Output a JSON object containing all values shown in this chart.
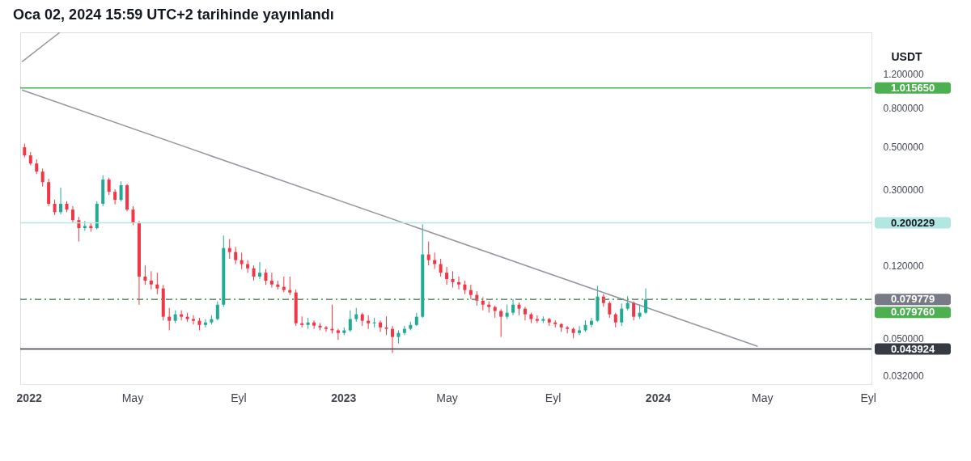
{
  "chart_data": {
    "type": "candlestick",
    "title": "Oca 02, 2024 15:59 UTC+2 tarihinde yayınlandı",
    "ylabel": "USDT",
    "log": true,
    "grid": false,
    "colors": [
      "#f23645",
      "#f23645",
      "#f23645",
      "#f23645",
      "#f23645",
      "#f23645",
      "#22ab94",
      "#f23645",
      "#f23645",
      "#f23645",
      "#22ab94",
      "#f23645",
      "#22ab94",
      "#22ab94",
      "#f23645",
      "#f23645",
      "#22ab94",
      "#f23645",
      "#f23645",
      "#f23645",
      "#f23645",
      "#f23645",
      "#f23645",
      "#f23645",
      "#f23645",
      "#22ab94",
      "#f23645",
      "#f23645",
      "#f23645",
      "#f23645",
      "#22ab94",
      "#22ab94",
      "#22ab94",
      "#22ab94",
      "#f23645",
      "#f23645",
      "#f23645",
      "#f23645",
      "#f23645",
      "#22ab94",
      "#f23645",
      "#f23645",
      "#f23645",
      "#f23645",
      "#f23645",
      "#f23645",
      "#f23645",
      "#22ab94",
      "#f23645",
      "#f23645",
      "#f23645",
      "#f23645",
      "#f23645",
      "#22ab94",
      "#22ab94",
      "#22ab94",
      "#f23645",
      "#f23645",
      "#22ab94",
      "#f23645",
      "#f23645",
      "#f23645",
      "#22ab94",
      "#22ab94",
      "#22ab94",
      "#22ab94",
      "#22ab94",
      "#f23645",
      "#f23645",
      "#f23645",
      "#f23645",
      "#f23645",
      "#f23645",
      "#f23645",
      "#f23645",
      "#f23645",
      "#f23645",
      "#f23645",
      "#f23645",
      "#f23645",
      "#22ab94",
      "#22ab94",
      "#f23645",
      "#f23645",
      "#f23645",
      "#f23645",
      "#22ab94",
      "#f23645",
      "#f23645",
      "#f23645",
      "#f23645",
      "#f23645",
      "#22ab94",
      "#22ab94",
      "#22ab94",
      "#22ab94",
      "#f23645",
      "#f23645",
      "#f23645",
      "#22ab94",
      "#22ab94",
      "#f23645",
      "#22ab94",
      "#22ab94"
    ],
    "x": [
      "2021-12-27",
      "2022-01-03",
      "2022-01-10",
      "2022-01-17",
      "2022-01-24",
      "2022-01-31",
      "2022-02-07",
      "2022-02-14",
      "2022-02-21",
      "2022-02-28",
      "2022-03-07",
      "2022-03-14",
      "2022-03-21",
      "2022-03-28",
      "2022-04-04",
      "2022-04-11",
      "2022-04-18",
      "2022-04-25",
      "2022-05-02",
      "2022-05-09",
      "2022-05-16",
      "2022-05-23",
      "2022-05-30",
      "2022-06-06",
      "2022-06-13",
      "2022-06-20",
      "2022-06-27",
      "2022-07-04",
      "2022-07-11",
      "2022-07-18",
      "2022-07-25",
      "2022-08-01",
      "2022-08-08",
      "2022-08-15",
      "2022-08-22",
      "2022-08-29",
      "2022-09-05",
      "2022-09-12",
      "2022-09-19",
      "2022-09-26",
      "2022-10-03",
      "2022-10-10",
      "2022-10-17",
      "2022-10-24",
      "2022-10-31",
      "2022-11-07",
      "2022-11-14",
      "2022-11-21",
      "2022-11-28",
      "2022-12-05",
      "2022-12-12",
      "2022-12-19",
      "2022-12-26",
      "2023-01-02",
      "2023-01-09",
      "2023-01-16",
      "2023-01-23",
      "2023-01-30",
      "2023-02-06",
      "2023-02-13",
      "2023-02-20",
      "2023-02-27",
      "2023-03-06",
      "2023-03-13",
      "2023-03-20",
      "2023-03-27",
      "2023-04-03",
      "2023-04-10",
      "2023-04-17",
      "2023-04-24",
      "2023-05-01",
      "2023-05-08",
      "2023-05-15",
      "2023-05-22",
      "2023-05-29",
      "2023-06-05",
      "2023-06-12",
      "2023-06-19",
      "2023-06-26",
      "2023-07-03",
      "2023-07-10",
      "2023-07-17",
      "2023-07-24",
      "2023-07-31",
      "2023-08-07",
      "2023-08-14",
      "2023-08-21",
      "2023-08-28",
      "2023-09-04",
      "2023-09-11",
      "2023-09-18",
      "2023-09-25",
      "2023-10-02",
      "2023-10-09",
      "2023-10-16",
      "2023-10-23",
      "2023-10-30",
      "2023-11-06",
      "2023-11-13",
      "2023-11-20",
      "2023-11-27",
      "2023-12-04",
      "2023-12-11",
      "2023-12-18"
    ],
    "ohlc": [
      [
        0.497,
        0.52,
        0.44,
        0.451
      ],
      [
        0.451,
        0.47,
        0.4,
        0.409
      ],
      [
        0.409,
        0.43,
        0.36,
        0.371
      ],
      [
        0.371,
        0.385,
        0.31,
        0.327
      ],
      [
        0.327,
        0.34,
        0.245,
        0.252
      ],
      [
        0.252,
        0.265,
        0.22,
        0.228
      ],
      [
        0.228,
        0.306,
        0.222,
        0.252
      ],
      [
        0.252,
        0.26,
        0.228,
        0.235
      ],
      [
        0.235,
        0.245,
        0.2,
        0.207
      ],
      [
        0.207,
        0.215,
        0.16,
        0.188
      ],
      [
        0.188,
        0.205,
        0.182,
        0.193
      ],
      [
        0.193,
        0.2,
        0.18,
        0.188
      ],
      [
        0.188,
        0.26,
        0.185,
        0.252
      ],
      [
        0.252,
        0.355,
        0.245,
        0.337
      ],
      [
        0.337,
        0.345,
        0.28,
        0.291
      ],
      [
        0.291,
        0.3,
        0.25,
        0.264
      ],
      [
        0.264,
        0.33,
        0.26,
        0.315
      ],
      [
        0.315,
        0.32,
        0.23,
        0.235
      ],
      [
        0.235,
        0.245,
        0.195,
        0.201
      ],
      [
        0.201,
        0.205,
        0.0749,
        0.105
      ],
      [
        0.105,
        0.12,
        0.095,
        0.1
      ],
      [
        0.1,
        0.112,
        0.09,
        0.0955
      ],
      [
        0.0955,
        0.11,
        0.085,
        0.091
      ],
      [
        0.091,
        0.095,
        0.062,
        0.0648
      ],
      [
        0.0648,
        0.072,
        0.055,
        0.0617
      ],
      [
        0.0617,
        0.07,
        0.06,
        0.0667
      ],
      [
        0.0667,
        0.07,
        0.062,
        0.0648
      ],
      [
        0.0648,
        0.068,
        0.061,
        0.063
      ],
      [
        0.063,
        0.066,
        0.059,
        0.0617
      ],
      [
        0.0617,
        0.064,
        0.055,
        0.0587
      ],
      [
        0.0587,
        0.063,
        0.057,
        0.0605
      ],
      [
        0.0605,
        0.066,
        0.059,
        0.063
      ],
      [
        0.063,
        0.078,
        0.062,
        0.0749
      ],
      [
        0.0749,
        0.172,
        0.073,
        0.148
      ],
      [
        0.148,
        0.165,
        0.13,
        0.141
      ],
      [
        0.141,
        0.15,
        0.122,
        0.128
      ],
      [
        0.128,
        0.14,
        0.115,
        0.122
      ],
      [
        0.122,
        0.128,
        0.11,
        0.116
      ],
      [
        0.116,
        0.12,
        0.1,
        0.105
      ],
      [
        0.105,
        0.125,
        0.102,
        0.11
      ],
      [
        0.11,
        0.115,
        0.095,
        0.1
      ],
      [
        0.1,
        0.11,
        0.092,
        0.0955
      ],
      [
        0.0955,
        0.1,
        0.09,
        0.0928
      ],
      [
        0.0928,
        0.105,
        0.087,
        0.0893
      ],
      [
        0.0893,
        0.105,
        0.084,
        0.0867
      ],
      [
        0.0867,
        0.09,
        0.058,
        0.0599
      ],
      [
        0.0599,
        0.065,
        0.057,
        0.0587
      ],
      [
        0.0587,
        0.064,
        0.056,
        0.0605
      ],
      [
        0.0605,
        0.062,
        0.056,
        0.0582
      ],
      [
        0.0582,
        0.06,
        0.055,
        0.057
      ],
      [
        0.057,
        0.058,
        0.054,
        0.056
      ],
      [
        0.056,
        0.075,
        0.053,
        0.055
      ],
      [
        0.055,
        0.056,
        0.049,
        0.0533
      ],
      [
        0.0533,
        0.057,
        0.052,
        0.055
      ],
      [
        0.055,
        0.07,
        0.054,
        0.063
      ],
      [
        0.063,
        0.072,
        0.061,
        0.0667
      ],
      [
        0.0667,
        0.068,
        0.058,
        0.0617
      ],
      [
        0.0617,
        0.066,
        0.056,
        0.0599
      ],
      [
        0.0599,
        0.064,
        0.057,
        0.0605
      ],
      [
        0.0605,
        0.062,
        0.054,
        0.057
      ],
      [
        0.057,
        0.065,
        0.052,
        0.056
      ],
      [
        0.056,
        0.058,
        0.0418,
        0.0508
      ],
      [
        0.0508,
        0.055,
        0.047,
        0.0533
      ],
      [
        0.0533,
        0.058,
        0.052,
        0.056
      ],
      [
        0.056,
        0.061,
        0.055,
        0.0587
      ],
      [
        0.0587,
        0.068,
        0.058,
        0.0648
      ],
      [
        0.0648,
        0.197,
        0.064,
        0.137
      ],
      [
        0.137,
        0.16,
        0.12,
        0.128
      ],
      [
        0.128,
        0.14,
        0.115,
        0.122
      ],
      [
        0.122,
        0.13,
        0.105,
        0.11
      ],
      [
        0.11,
        0.118,
        0.095,
        0.102
      ],
      [
        0.102,
        0.112,
        0.092,
        0.0982
      ],
      [
        0.0982,
        0.105,
        0.09,
        0.0955
      ],
      [
        0.0955,
        0.1,
        0.085,
        0.0893
      ],
      [
        0.0893,
        0.095,
        0.08,
        0.0842
      ],
      [
        0.0842,
        0.088,
        0.074,
        0.0786
      ],
      [
        0.0786,
        0.082,
        0.07,
        0.0749
      ],
      [
        0.0749,
        0.078,
        0.068,
        0.0728
      ],
      [
        0.0728,
        0.074,
        0.064,
        0.0694
      ],
      [
        0.0694,
        0.071,
        0.0508,
        0.0648
      ],
      [
        0.0648,
        0.075,
        0.063,
        0.068
      ],
      [
        0.068,
        0.08,
        0.066,
        0.0749
      ],
      [
        0.0749,
        0.077,
        0.066,
        0.0714
      ],
      [
        0.0714,
        0.073,
        0.062,
        0.0667
      ],
      [
        0.0667,
        0.068,
        0.06,
        0.063
      ],
      [
        0.063,
        0.066,
        0.06,
        0.0617
      ],
      [
        0.0617,
        0.065,
        0.06,
        0.063
      ],
      [
        0.063,
        0.064,
        0.058,
        0.0605
      ],
      [
        0.0605,
        0.062,
        0.057,
        0.0593
      ],
      [
        0.0593,
        0.06,
        0.054,
        0.057
      ],
      [
        0.057,
        0.058,
        0.053,
        0.056
      ],
      [
        0.056,
        0.057,
        0.05,
        0.0533
      ],
      [
        0.0533,
        0.058,
        0.052,
        0.055
      ],
      [
        0.055,
        0.062,
        0.054,
        0.0587
      ],
      [
        0.0587,
        0.064,
        0.057,
        0.0617
      ],
      [
        0.0617,
        0.094,
        0.061,
        0.0826
      ],
      [
        0.0826,
        0.085,
        0.073,
        0.0764
      ],
      [
        0.0764,
        0.078,
        0.064,
        0.0667
      ],
      [
        0.0667,
        0.068,
        0.057,
        0.0605
      ],
      [
        0.0605,
        0.076,
        0.058,
        0.0714
      ],
      [
        0.0714,
        0.083,
        0.07,
        0.0764
      ],
      [
        0.0764,
        0.078,
        0.062,
        0.0648
      ],
      [
        0.0648,
        0.075,
        0.063,
        0.068
      ],
      [
        0.068,
        0.091,
        0.067,
        0.0798
      ]
    ],
    "series": [
      {
        "type": "line",
        "x": [
          "2021-12-24",
          "2024-04-26"
        ],
        "values": [
          0.99,
          0.0454
        ],
        "color": "#9598a1"
      },
      {
        "type": "line",
        "x": [
          "2021-12-24",
          "2022-02-06"
        ],
        "values": [
          1.39,
          1.98
        ],
        "color": "#9598a1"
      }
    ],
    "xlim": [
      "2021-12-22",
      "2024-09-05"
    ],
    "xticks": [
      {
        "value": "2022-01-01",
        "label": "2022"
      },
      {
        "value": "2022-05-01",
        "label": "May"
      },
      {
        "value": "2022-09-01",
        "label": "Eyl"
      },
      {
        "value": "2023-01-01",
        "label": "2023"
      },
      {
        "value": "2023-05-01",
        "label": "May"
      },
      {
        "value": "2023-09-01",
        "label": "Eyl"
      },
      {
        "value": "2024-01-01",
        "label": "2024"
      },
      {
        "value": "2024-05-01",
        "label": "May"
      },
      {
        "value": "2024-09-01",
        "label": "Eyl"
      }
    ],
    "ylim": [
      0.0288,
      1.98
    ],
    "yticks": [
      {
        "value": 0.032,
        "label": "0.032000"
      },
      {
        "value": 0.05,
        "label": "0.050000"
      },
      {
        "value": 0.12,
        "label": "0.120000"
      },
      {
        "value": 0.3,
        "label": "0.300000"
      },
      {
        "value": 0.5,
        "label": "0.500000"
      },
      {
        "value": 0.8,
        "label": "0.800000"
      },
      {
        "value": 1.2,
        "label": "1.200000"
      }
    ],
    "ref_lines": [
      {
        "axis": "y",
        "value": 1.01565,
        "label": "1.015650",
        "color": "#4caf50",
        "line_style": "solid"
      },
      {
        "axis": "y",
        "value": 0.200229,
        "label": "0.200229",
        "color": "#b2e6e0",
        "line_style": "solid"
      },
      {
        "axis": "y",
        "value": 0.079779,
        "label": "0.079779",
        "color": "#787b86",
        "line_style": "dashed"
      },
      {
        "axis": "y",
        "value": 0.07976,
        "label": "0.079760",
        "color": "#4caf50",
        "line_style": "dotted"
      },
      {
        "axis": "y",
        "value": 0.043924,
        "label": "0.043924",
        "color": "#363a45",
        "line_style": "solid"
      }
    ]
  }
}
